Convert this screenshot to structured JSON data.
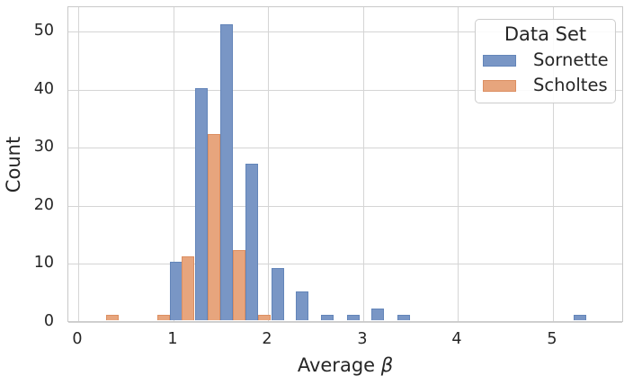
{
  "figure": {
    "xlabel_parts": [
      "Average ",
      "β"
    ]
  },
  "chart_data": {
    "type": "bar",
    "subtype": "histogram-dodged",
    "title": "",
    "xlabel": "Average β",
    "ylabel": "Count",
    "xticks": [
      0,
      1,
      2,
      3,
      4,
      5
    ],
    "yticks": [
      0,
      10,
      20,
      30,
      40,
      50
    ],
    "xlim": [
      -0.1,
      5.76
    ],
    "ylim": [
      0,
      54.3
    ],
    "grid": true,
    "bin_width": 0.266,
    "bar_width": 0.133,
    "legend": {
      "title": "Data Set",
      "position": "upper-right"
    },
    "series": [
      {
        "name": "Sornette",
        "color": "#7996c5",
        "edge": "#6385b9",
        "bars": [
          {
            "x": 1.03,
            "count": 10
          },
          {
            "x": 1.3,
            "count": 40
          },
          {
            "x": 1.56,
            "count": 51
          },
          {
            "x": 1.83,
            "count": 27
          },
          {
            "x": 2.1,
            "count": 9
          },
          {
            "x": 2.36,
            "count": 5
          },
          {
            "x": 2.63,
            "count": 1
          },
          {
            "x": 2.9,
            "count": 1
          },
          {
            "x": 3.16,
            "count": 2
          },
          {
            "x": 3.43,
            "count": 1
          },
          {
            "x": 5.29,
            "count": 1
          }
        ]
      },
      {
        "name": "Scholtes",
        "color": "#e7a57d",
        "edge": "#dc8f62",
        "bars": [
          {
            "x": 0.36,
            "count": 1
          },
          {
            "x": 0.9,
            "count": 1
          },
          {
            "x": 1.16,
            "count": 11
          },
          {
            "x": 1.43,
            "count": 32
          },
          {
            "x": 1.7,
            "count": 12
          },
          {
            "x": 1.96,
            "count": 1
          }
        ]
      }
    ]
  }
}
